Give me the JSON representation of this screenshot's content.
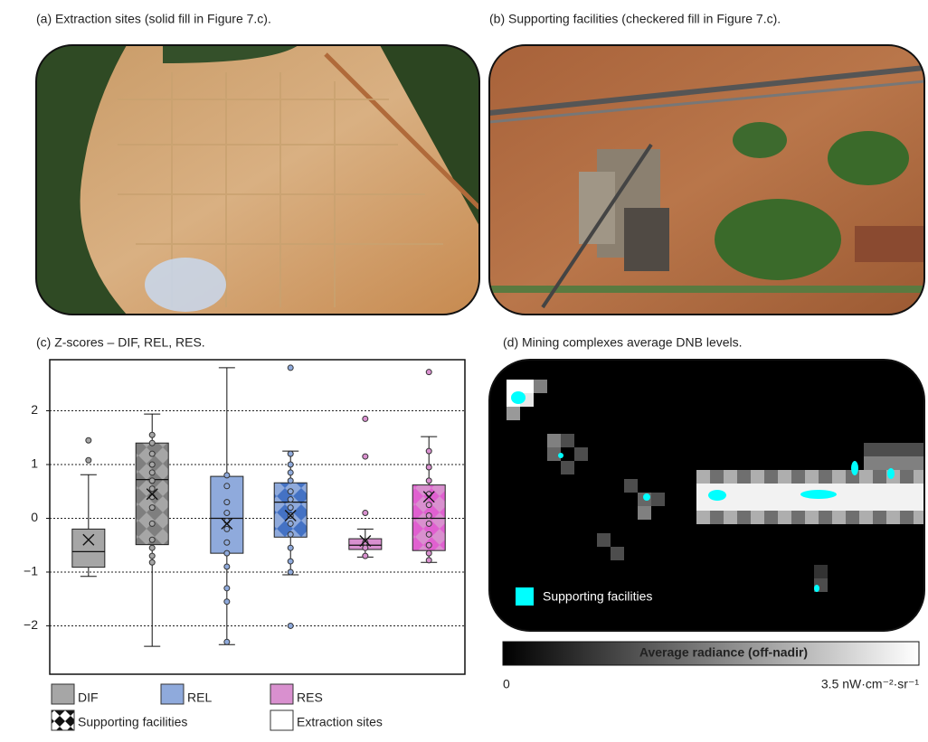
{
  "panels": {
    "a": {
      "caption": "(a) Extraction sites (solid fill in Figure 7.c)."
    },
    "b": {
      "caption": "(b) Supporting facilities (checkered fill in Figure 7.c)."
    },
    "d": {
      "caption": "(d) Mining complexes average DNB levels.",
      "legend": "Supporting facilities",
      "colorbar_title": "Average radiance (off-nadir)",
      "colorbar_min": "0",
      "colorbar_max": "3.5 nW·cm⁻²·sr⁻¹"
    }
  },
  "chart_data": {
    "type": "box",
    "title": "(c) Z-scores – DIF, REL, RES.",
    "ylim": [
      -2.9,
      2.95
    ],
    "yticks": [
      {
        "value": -2,
        "label": "−2"
      },
      {
        "value": -1,
        "label": "−1"
      },
      0,
      1,
      2
    ],
    "grid": true,
    "fills": [
      {
        "name": "Supporting facilities",
        "pattern": "checkered"
      },
      {
        "name": "Extraction sites",
        "pattern": "solid"
      }
    ],
    "series": [
      {
        "name": "DIF",
        "color": "#a6a6a6",
        "checker_color": "#7f7f7f",
        "boxes": [
          {
            "pattern": "solid",
            "whisker_low": -1.08,
            "q1": -0.91,
            "median": -0.62,
            "q3": -0.2,
            "whisker_high": 0.81,
            "mean": -0.4,
            "points": [
              1.45,
              1.08
            ]
          },
          {
            "pattern": "checkered",
            "whisker_low": -2.38,
            "q1": -0.49,
            "median": 0.72,
            "q3": 1.4,
            "whisker_high": 1.94,
            "mean": 0.45,
            "points": [
              1.55,
              1.4,
              1.2,
              1.0,
              0.85,
              0.7,
              0.55,
              0.4,
              0.2,
              -0.1,
              -0.4,
              -0.55,
              -0.7,
              -0.82
            ]
          }
        ]
      },
      {
        "name": "REL",
        "color": "#8faadc",
        "checker_color": "#4472c4",
        "boxes": [
          {
            "pattern": "solid",
            "whisker_low": -2.35,
            "q1": -0.65,
            "median": 0,
            "q3": 0.78,
            "whisker_high": 2.8,
            "mean": -0.1,
            "points": [
              0.8,
              0.6,
              0.3,
              0.1,
              -0.05,
              -0.2,
              -0.45,
              -0.65,
              -0.9,
              -1.3,
              -1.55,
              -2.3
            ]
          },
          {
            "pattern": "checkered",
            "whisker_low": -1.05,
            "q1": -0.35,
            "median": 0.3,
            "q3": 0.66,
            "whisker_high": 1.25,
            "mean": 0.05,
            "points": [
              2.8,
              1.2,
              1.0,
              0.85,
              0.7,
              0.5,
              0.35,
              0.2,
              0.05,
              -0.1,
              -0.3,
              -0.55,
              -0.8,
              -1.0,
              -2.0
            ]
          }
        ]
      },
      {
        "name": "RES",
        "color": "#d990cf",
        "checker_color": "#e060d0",
        "boxes": [
          {
            "pattern": "solid",
            "whisker_low": -0.72,
            "q1": -0.58,
            "median": -0.5,
            "q3": -0.38,
            "whisker_high": -0.2,
            "mean": -0.42,
            "points": [
              1.85,
              1.15,
              0.1,
              -0.45,
              -0.55,
              -0.7
            ]
          },
          {
            "pattern": "checkered",
            "whisker_low": -0.82,
            "q1": -0.6,
            "median": 0,
            "q3": 0.62,
            "whisker_high": 1.52,
            "mean": 0.4,
            "points": [
              2.72,
              1.25,
              0.95,
              0.7,
              0.45,
              0.25,
              0.05,
              -0.1,
              -0.3,
              -0.5,
              -0.65,
              -0.78
            ]
          }
        ]
      }
    ]
  }
}
